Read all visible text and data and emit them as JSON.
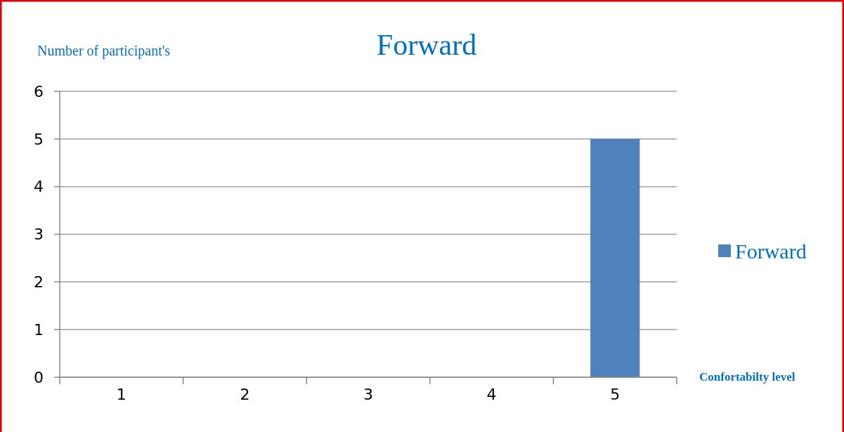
{
  "chart_data": {
    "type": "bar",
    "title": "Forward",
    "ylabel": "Number of participant's",
    "xlabel": "Confortabilty level",
    "categories": [
      "1",
      "2",
      "3",
      "4",
      "5"
    ],
    "series": [
      {
        "name": "Forward",
        "color": "#4f81bd",
        "values": [
          0,
          0,
          0,
          0,
          5
        ]
      }
    ],
    "ylim": [
      0,
      6
    ],
    "yticks": [
      0,
      1,
      2,
      3,
      4,
      5,
      6
    ],
    "grid": "y",
    "legend": "right"
  }
}
